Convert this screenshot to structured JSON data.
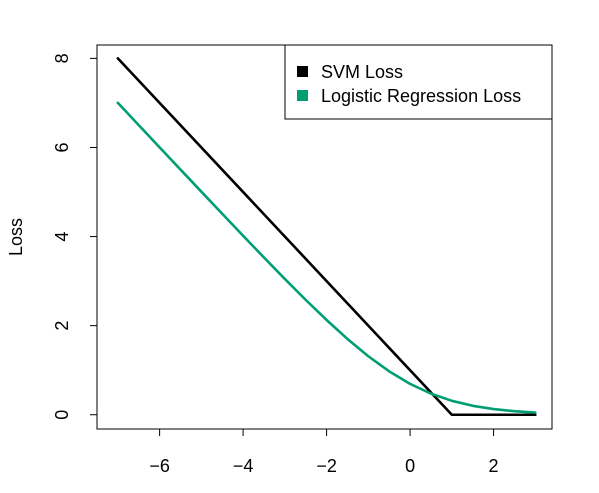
{
  "chart_data": {
    "type": "line",
    "title": "",
    "xlabel": "",
    "ylabel": "Loss",
    "xlim": [
      -7.5,
      3.4
    ],
    "ylim": [
      -0.32,
      8.3
    ],
    "xticks": [
      -6,
      -4,
      -2,
      0,
      2
    ],
    "xtick_labels": [
      "−6",
      "−4",
      "−2",
      "0",
      "2"
    ],
    "yticks": [
      0,
      2,
      4,
      6,
      8
    ],
    "ytick_labels": [
      "0",
      "2",
      "4",
      "6",
      "8"
    ],
    "grid": false,
    "legend": {
      "position": "top-right"
    },
    "series": [
      {
        "name": "SVM Loss",
        "color": "#000000",
        "x": [
          -7,
          1,
          3
        ],
        "y": [
          8,
          0,
          0
        ]
      },
      {
        "name": "Logistic Regression Loss",
        "color": "#009E73",
        "x": [
          -7,
          -6.5,
          -6,
          -5.5,
          -5,
          -4.5,
          -4,
          -3.5,
          -3,
          -2.5,
          -2,
          -1.5,
          -1,
          -0.5,
          0,
          0.5,
          1,
          1.5,
          2,
          2.5,
          3
        ],
        "y": [
          7.001,
          6.502,
          6.002,
          5.504,
          5.007,
          4.511,
          4.018,
          3.53,
          3.049,
          2.579,
          2.127,
          1.701,
          1.313,
          0.974,
          0.693,
          0.474,
          0.313,
          0.201,
          0.127,
          0.079,
          0.049
        ]
      }
    ]
  }
}
